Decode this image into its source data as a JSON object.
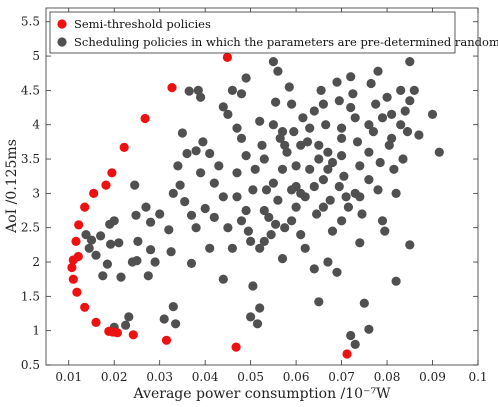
{
  "chart_data": {
    "type": "scatter",
    "xlabel": "Average power consumption /10⁻⁷W",
    "ylabel": "AoI /0.125ms",
    "xlim": [
      0.005,
      0.1
    ],
    "ylim": [
      0.5,
      5.7
    ],
    "xticks": [
      "0.01",
      "0.02",
      "0.03",
      "0.04",
      "0.05",
      "0.06",
      "0.07",
      "0.08",
      "0.09",
      "0.1"
    ],
    "yticks": [
      "0.5",
      "1",
      "1.5",
      "2",
      "2.5",
      "3",
      "3.5",
      "4",
      "4.5",
      "5",
      "5.5"
    ],
    "grid": false,
    "legend_position": "top-left",
    "series": [
      {
        "name": "Semi-threshold policies",
        "color": "#ee1111",
        "points": [
          [
            0.0449,
            4.98
          ],
          [
            0.0327,
            4.54
          ],
          [
            0.0268,
            4.09
          ],
          [
            0.0222,
            3.67
          ],
          [
            0.0195,
            3.3
          ],
          [
            0.0182,
            3.12
          ],
          [
            0.0155,
            3.0
          ],
          [
            0.0135,
            2.8
          ],
          [
            0.0122,
            2.54
          ],
          [
            0.0116,
            2.3
          ],
          [
            0.0121,
            2.08
          ],
          [
            0.011,
            2.03
          ],
          [
            0.0107,
            1.92
          ],
          [
            0.011,
            1.75
          ],
          [
            0.0118,
            1.56
          ],
          [
            0.0135,
            1.34
          ],
          [
            0.016,
            1.12
          ],
          [
            0.0188,
            0.99
          ],
          [
            0.0197,
            0.98
          ],
          [
            0.0207,
            0.97
          ],
          [
            0.0242,
            0.94
          ],
          [
            0.0315,
            0.86
          ],
          [
            0.0468,
            0.76
          ],
          [
            0.0712,
            0.66
          ]
        ]
      },
      {
        "name": "Scheduling policies in which the parameters are pre-determined randomly",
        "color": "#505050",
        "points": [
          [
            0.0138,
            2.4
          ],
          [
            0.015,
            2.32
          ],
          [
            0.017,
            2.38
          ],
          [
            0.0145,
            2.2
          ],
          [
            0.016,
            2.1
          ],
          [
            0.019,
            2.55
          ],
          [
            0.0192,
            2.26
          ],
          [
            0.0185,
            1.97
          ],
          [
            0.0175,
            1.8
          ],
          [
            0.02,
            2.6
          ],
          [
            0.021,
            2.28
          ],
          [
            0.0215,
            1.78
          ],
          [
            0.02,
            1.05
          ],
          [
            0.0225,
            1.08
          ],
          [
            0.0232,
            1.2
          ],
          [
            0.024,
            2.0
          ],
          [
            0.025,
            2.02
          ],
          [
            0.0248,
            2.68
          ],
          [
            0.0252,
            2.3
          ],
          [
            0.0245,
            3.12
          ],
          [
            0.027,
            2.8
          ],
          [
            0.028,
            2.58
          ],
          [
            0.028,
            2.18
          ],
          [
            0.029,
            2.0
          ],
          [
            0.0275,
            1.8
          ],
          [
            0.03,
            2.7
          ],
          [
            0.032,
            2.47
          ],
          [
            0.0325,
            2.15
          ],
          [
            0.033,
            1.35
          ],
          [
            0.031,
            1.17
          ],
          [
            0.0335,
            1.1
          ],
          [
            0.033,
            3.0
          ],
          [
            0.0345,
            3.12
          ],
          [
            0.034,
            3.4
          ],
          [
            0.035,
            3.88
          ],
          [
            0.036,
            3.58
          ],
          [
            0.038,
            3.62
          ],
          [
            0.0355,
            2.88
          ],
          [
            0.037,
            2.68
          ],
          [
            0.038,
            2.5
          ],
          [
            0.037,
            1.98
          ],
          [
            0.0365,
            4.49
          ],
          [
            0.0385,
            4.5
          ],
          [
            0.039,
            4.4
          ],
          [
            0.0395,
            3.75
          ],
          [
            0.041,
            3.58
          ],
          [
            0.04,
            2.78
          ],
          [
            0.042,
            3.15
          ],
          [
            0.041,
            2.2
          ],
          [
            0.044,
            4.26
          ],
          [
            0.045,
            4.15
          ],
          [
            0.043,
            3.4
          ],
          [
            0.044,
            2.95
          ],
          [
            0.045,
            2.5
          ],
          [
            0.044,
            1.75
          ],
          [
            0.046,
            4.5
          ],
          [
            0.047,
            3.95
          ],
          [
            0.047,
            3.3
          ],
          [
            0.046,
            2.2
          ],
          [
            0.048,
            4.45
          ],
          [
            0.049,
            4.68
          ],
          [
            0.048,
            3.8
          ],
          [
            0.049,
            3.55
          ],
          [
            0.048,
            2.6
          ],
          [
            0.0495,
            2.45
          ],
          [
            0.05,
            2.3
          ],
          [
            0.0505,
            1.65
          ],
          [
            0.05,
            1.2
          ],
          [
            0.0515,
            1.1
          ],
          [
            0.052,
            1.33
          ],
          [
            0.052,
            4.05
          ],
          [
            0.0525,
            3.7
          ],
          [
            0.051,
            3.35
          ],
          [
            0.053,
            3.5
          ],
          [
            0.0535,
            3.05
          ],
          [
            0.054,
            2.65
          ],
          [
            0.053,
            2.3
          ],
          [
            0.0545,
            2.4
          ],
          [
            0.055,
            4.92
          ],
          [
            0.056,
            4.78
          ],
          [
            0.0555,
            4.33
          ],
          [
            0.055,
            4.0
          ],
          [
            0.0565,
            3.8
          ],
          [
            0.057,
            3.35
          ],
          [
            0.056,
            2.9
          ],
          [
            0.0575,
            2.5
          ],
          [
            0.057,
            2.05
          ],
          [
            0.0585,
            4.55
          ],
          [
            0.059,
            4.3
          ],
          [
            0.0595,
            3.9
          ],
          [
            0.059,
            3.05
          ],
          [
            0.06,
            3.4
          ],
          [
            0.061,
            3.0
          ],
          [
            0.06,
            2.8
          ],
          [
            0.061,
            2.4
          ],
          [
            0.062,
            2.2
          ],
          [
            0.0615,
            4.1
          ],
          [
            0.0625,
            3.75
          ],
          [
            0.063,
            3.35
          ],
          [
            0.064,
            3.1
          ],
          [
            0.0645,
            2.7
          ],
          [
            0.064,
            1.9
          ],
          [
            0.065,
            1.42
          ],
          [
            0.0655,
            4.5
          ],
          [
            0.066,
            4.3
          ],
          [
            0.0665,
            4.0
          ],
          [
            0.067,
            3.6
          ],
          [
            0.066,
            3.2
          ],
          [
            0.0675,
            2.9
          ],
          [
            0.068,
            2.45
          ],
          [
            0.067,
            2.0
          ],
          [
            0.069,
            1.85
          ],
          [
            0.069,
            4.62
          ],
          [
            0.0695,
            4.35
          ],
          [
            0.07,
            3.95
          ],
          [
            0.07,
            3.55
          ],
          [
            0.0705,
            3.25
          ],
          [
            0.071,
            2.95
          ],
          [
            0.07,
            2.6
          ],
          [
            0.0715,
            2.8
          ],
          [
            0.072,
            4.7
          ],
          [
            0.0725,
            4.45
          ],
          [
            0.073,
            4.1
          ],
          [
            0.0735,
            3.75
          ],
          [
            0.074,
            3.4
          ],
          [
            0.073,
            3.0
          ],
          [
            0.0745,
            2.7
          ],
          [
            0.074,
            2.28
          ],
          [
            0.075,
            1.4
          ],
          [
            0.076,
            1.02
          ],
          [
            0.072,
            0.93
          ],
          [
            0.073,
            0.8
          ],
          [
            0.0765,
            4.6
          ],
          [
            0.0775,
            4.3
          ],
          [
            0.078,
            4.78
          ],
          [
            0.077,
            3.9
          ],
          [
            0.0785,
            3.45
          ],
          [
            0.078,
            3.05
          ],
          [
            0.079,
            2.6
          ],
          [
            0.0795,
            2.45
          ],
          [
            0.08,
            4.4
          ],
          [
            0.081,
            4.15
          ],
          [
            0.0805,
            3.7
          ],
          [
            0.0815,
            3.35
          ],
          [
            0.082,
            3.0
          ],
          [
            0.082,
            1.72
          ],
          [
            0.083,
            4.5
          ],
          [
            0.084,
            4.2
          ],
          [
            0.0845,
            3.9
          ],
          [
            0.085,
            4.92
          ],
          [
            0.085,
            2.25
          ],
          [
            0.0835,
            3.5
          ],
          [
            0.09,
            4.15
          ],
          [
            0.0915,
            3.6
          ],
          [
            0.086,
            4.5
          ],
          [
            0.087,
            3.85
          ],
          [
            0.079,
            4.1
          ],
          [
            0.061,
            3.7
          ],
          [
            0.058,
            3.6
          ],
          [
            0.063,
            3.95
          ],
          [
            0.068,
            3.45
          ],
          [
            0.0695,
            3.1
          ],
          [
            0.052,
            2.2
          ],
          [
            0.053,
            2.75
          ],
          [
            0.042,
            2.65
          ],
          [
            0.047,
            2.95
          ],
          [
            0.039,
            3.3
          ],
          [
            0.055,
            3.15
          ],
          [
            0.06,
            3.1
          ],
          [
            0.065,
            3.5
          ],
          [
            0.07,
            3.8
          ],
          [
            0.076,
            3.6
          ],
          [
            0.081,
            3.8
          ],
          [
            0.074,
            2.95
          ],
          [
            0.066,
            2.8
          ],
          [
            0.059,
            2.6
          ],
          [
            0.049,
            2.75
          ],
          [
            0.057,
            3.9
          ],
          [
            0.064,
            4.2
          ],
          [
            0.072,
            4.25
          ],
          [
            0.085,
            4.35
          ],
          [
            0.083,
            4.0
          ],
          [
            0.076,
            4.0
          ],
          [
            0.067,
            3.35
          ],
          [
            0.062,
            2.95
          ],
          [
            0.0555,
            2.55
          ],
          [
            0.0505,
            3.05
          ],
          [
            0.0575,
            3.7
          ],
          [
            0.065,
            3.7
          ],
          [
            0.076,
            3.2
          ]
        ]
      }
    ]
  }
}
